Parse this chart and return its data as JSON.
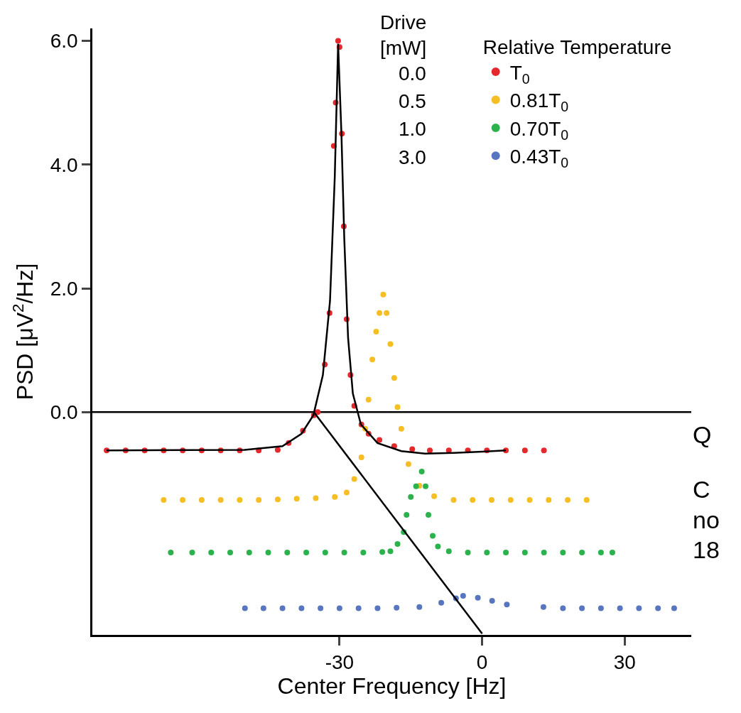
{
  "chart_data": {
    "type": "scatter",
    "xlabel": "Center Frequency [Hz]",
    "ylabel": "PSD [μV$^{2}$/Hz]",
    "legend_title": "Relative Temperature",
    "xlim": [
      -82,
      44
    ],
    "xticks": [
      -30,
      0,
      30
    ],
    "ylim": [
      -3.6,
      6.2
    ],
    "yticks": [
      {
        "value": 0,
        "label": "0.0"
      },
      {
        "value": 2,
        "label": "2.0"
      },
      {
        "value": 4,
        "label": "4.0"
      },
      {
        "value": 6,
        "label": "6.0"
      }
    ],
    "grid": false,
    "legend": "top right",
    "marker": "circle",
    "ref_lines": [
      {
        "axis": "y",
        "value": 0,
        "color": "#000000"
      }
    ],
    "annotations": [
      "Drive [mW]",
      "0.0",
      "0.5",
      "1.0",
      "3.0",
      "Q",
      "C",
      "no",
      "18"
    ],
    "series": [
      {
        "name": "T$_{0}$",
        "color": "#e5282c",
        "x": [
          -79,
          -75,
          -71,
          -67,
          -63,
          -59,
          -55,
          -51,
          -47,
          -43,
          -40.7,
          -37.7,
          -35.4,
          -34.6,
          -33.1,
          -32.1,
          -31.2,
          -30.8,
          -30.3,
          -30.0,
          -29.5,
          -29.1,
          -28.5,
          -27.7,
          -26.9,
          -25.4,
          -23.9,
          -21.6,
          -18.5,
          -14.7,
          -11,
          -7,
          -3,
          1,
          5,
          9,
          13
        ],
        "values": [
          -0.62,
          -0.62,
          -0.62,
          -0.62,
          -0.62,
          -0.62,
          -0.62,
          -0.62,
          -0.62,
          -0.61,
          -0.5,
          -0.3,
          -0.05,
          0.0,
          0.77,
          1.6,
          4.3,
          5.0,
          6.0,
          5.9,
          4.5,
          3.0,
          1.5,
          0.6,
          0.1,
          -0.2,
          -0.35,
          -0.45,
          -0.55,
          -0.6,
          -0.62,
          -0.62,
          -0.62,
          -0.62,
          -0.62,
          -0.62,
          -0.62
        ]
      },
      {
        "name": "0.81T$_{0}$",
        "color": "#f5bf24",
        "x": [
          -67,
          -63,
          -59,
          -55,
          -51,
          -47,
          -43,
          -39,
          -35,
          -31,
          -28.5,
          -26.9,
          -25.4,
          -24.6,
          -23.9,
          -23.1,
          -22.3,
          -21.6,
          -20.8,
          -20.1,
          -19.3,
          -18.5,
          -17.8,
          -17.0,
          -15.5,
          -13.2,
          -10.1,
          -6,
          -2,
          2,
          6,
          10,
          14,
          18,
          22
        ],
        "values": [
          -1.42,
          -1.42,
          -1.42,
          -1.42,
          -1.42,
          -1.42,
          -1.41,
          -1.4,
          -1.39,
          -1.37,
          -1.3,
          -1.08,
          -0.73,
          -0.27,
          0.2,
          0.85,
          1.3,
          1.6,
          1.9,
          1.6,
          1.1,
          0.55,
          0.08,
          -0.27,
          -0.84,
          -1.19,
          -1.36,
          -1.42,
          -1.42,
          -1.42,
          -1.42,
          -1.42,
          -1.42,
          -1.42,
          -1.42
        ]
      },
      {
        "name": "0.70T$_{0}$",
        "color": "#2bb24c",
        "x": [
          -65.5,
          -61,
          -57,
          -53,
          -49,
          -45,
          -41,
          -37,
          -33,
          -29,
          -25,
          -21,
          -19.3,
          -17.8,
          -16.5,
          -15.9,
          -15.0,
          -13.9,
          -12.7,
          -11.9,
          -11.3,
          -10.4,
          -9.3,
          -7.0,
          -3,
          1,
          5,
          9,
          13,
          17,
          21,
          25,
          27.4
        ],
        "values": [
          -2.27,
          -2.27,
          -2.27,
          -2.27,
          -2.27,
          -2.27,
          -2.27,
          -2.27,
          -2.27,
          -2.27,
          -2.27,
          -2.26,
          -2.25,
          -2.13,
          -1.94,
          -1.66,
          -1.37,
          -1.2,
          -0.96,
          -1.2,
          -1.66,
          -2.0,
          -2.17,
          -2.25,
          -2.27,
          -2.27,
          -2.27,
          -2.27,
          -2.27,
          -2.27,
          -2.27,
          -2.27,
          -2.27
        ]
      },
      {
        "name": "0.43T$_{0}$",
        "color": "#5875c0",
        "x": [
          -49.9,
          -46,
          -42,
          -38,
          -34,
          -30,
          -26,
          -22,
          -18,
          -13.2,
          -8.6,
          -5.5,
          -4.0,
          -0.9,
          2.1,
          5.2,
          12.9,
          17,
          21,
          25,
          29,
          33,
          37,
          40.4
        ],
        "values": [
          -3.17,
          -3.17,
          -3.17,
          -3.17,
          -3.17,
          -3.17,
          -3.17,
          -3.17,
          -3.16,
          -3.15,
          -3.08,
          -3.01,
          -2.97,
          -3.0,
          -3.05,
          -3.11,
          -3.15,
          -3.17,
          -3.17,
          -3.17,
          -3.17,
          -3.17,
          -3.17,
          -3.17
        ]
      },
      {
        "type": "line",
        "marker": "none",
        "color": "#000000",
        "x": [
          -79,
          -50,
          -42,
          -38,
          -35.5,
          -33.5,
          -32,
          -31,
          -30.3,
          -29.6,
          -29,
          -28.2,
          -27.2,
          -25.5,
          -22,
          -17,
          -12,
          -6,
          0,
          5
        ],
        "values": [
          -0.62,
          -0.61,
          -0.55,
          -0.35,
          -0.05,
          0.6,
          1.8,
          3.8,
          5.95,
          4.5,
          2.8,
          1.2,
          0.3,
          -0.2,
          -0.5,
          -0.63,
          -0.67,
          -0.66,
          -0.64,
          -0.62
        ]
      },
      {
        "type": "line",
        "marker": "none",
        "color": "#000000",
        "x": [
          -35.4,
          0
        ],
        "values": [
          0,
          -3.58
        ]
      }
    ]
  }
}
